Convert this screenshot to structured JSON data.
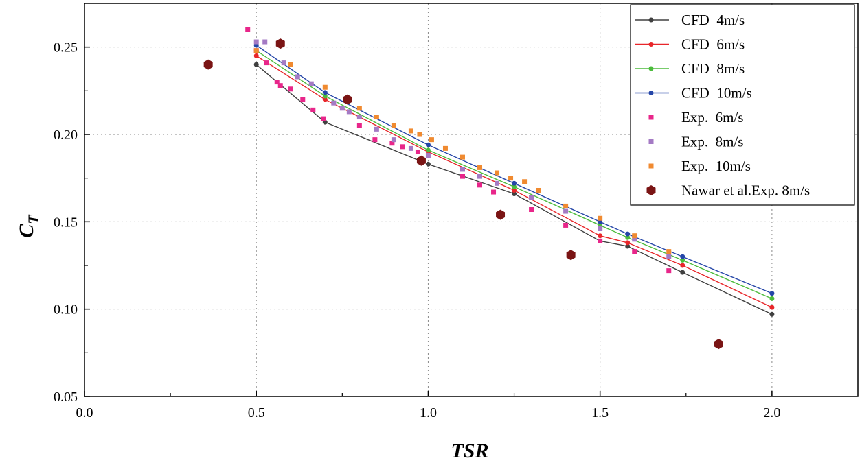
{
  "chart_data": {
    "type": "scatter",
    "title": "",
    "xlabel": "TSR",
    "ylabel_main": "C",
    "ylabel_sub": "T",
    "xlim": [
      0.0,
      2.25
    ],
    "ylim": [
      0.05,
      0.275
    ],
    "xticks": [
      0.0,
      0.5,
      1.0,
      1.5,
      2.0
    ],
    "xtick_labels": [
      "0.0",
      "0.5",
      "1.0",
      "1.5",
      "2.0"
    ],
    "yticks": [
      0.05,
      0.1,
      0.15,
      0.2,
      0.25
    ],
    "ytick_labels": [
      "0.05",
      "0.10",
      "0.15",
      "0.20",
      "0.25"
    ],
    "grid": true,
    "legend_position": "top-right",
    "series": [
      {
        "name": "CFD  4m/s",
        "kind": "line",
        "color": "#404040",
        "x": [
          0.5,
          0.7,
          1.0,
          1.25,
          1.5,
          1.58,
          1.74,
          2.0
        ],
        "y": [
          0.24,
          0.207,
          0.183,
          0.166,
          0.139,
          0.136,
          0.121,
          0.097
        ]
      },
      {
        "name": "CFD  6m/s",
        "kind": "line",
        "color": "#e8262a",
        "x": [
          0.5,
          0.7,
          1.0,
          1.25,
          1.5,
          1.58,
          1.74,
          2.0
        ],
        "y": [
          0.245,
          0.22,
          0.19,
          0.168,
          0.142,
          0.138,
          0.125,
          0.101
        ]
      },
      {
        "name": "CFD  8m/s",
        "kind": "line",
        "color": "#4cbc3c",
        "x": [
          0.5,
          0.7,
          1.0,
          1.25,
          1.5,
          1.58,
          1.74,
          2.0
        ],
        "y": [
          0.248,
          0.222,
          0.191,
          0.17,
          0.148,
          0.141,
          0.128,
          0.106
        ]
      },
      {
        "name": "CFD  10m/s",
        "kind": "line",
        "color": "#2546a8",
        "x": [
          0.5,
          0.7,
          1.0,
          1.25,
          1.5,
          1.58,
          1.74,
          2.0
        ],
        "y": [
          0.251,
          0.224,
          0.194,
          0.172,
          0.15,
          0.143,
          0.13,
          0.109
        ]
      },
      {
        "name": "Exp.  6m/s",
        "kind": "square",
        "color": "#e8268a",
        "x": [
          0.475,
          0.5,
          0.53,
          0.56,
          0.57,
          0.6,
          0.635,
          0.665,
          0.695,
          0.8,
          0.845,
          0.895,
          0.925,
          0.97,
          1.1,
          1.15,
          1.19,
          1.3,
          1.4,
          1.5,
          1.6,
          1.7
        ],
        "y": [
          0.26,
          0.248,
          0.241,
          0.23,
          0.228,
          0.226,
          0.22,
          0.214,
          0.209,
          0.205,
          0.197,
          0.195,
          0.193,
          0.19,
          0.176,
          0.171,
          0.167,
          0.157,
          0.148,
          0.139,
          0.133,
          0.122
        ]
      },
      {
        "name": "Exp.  8m/s",
        "kind": "square",
        "color": "#a47ac4",
        "x": [
          0.5,
          0.525,
          0.58,
          0.62,
          0.66,
          0.725,
          0.75,
          0.77,
          0.8,
          0.85,
          0.9,
          0.95,
          1.0,
          1.1,
          1.15,
          1.2,
          1.3,
          1.4,
          1.5,
          1.6,
          1.7
        ],
        "y": [
          0.253,
          0.253,
          0.241,
          0.233,
          0.229,
          0.218,
          0.215,
          0.213,
          0.21,
          0.203,
          0.197,
          0.192,
          0.188,
          0.18,
          0.176,
          0.172,
          0.164,
          0.156,
          0.146,
          0.14,
          0.13
        ]
      },
      {
        "name": "Exp.  10m/s",
        "kind": "square",
        "color": "#f08a30",
        "x": [
          0.5,
          0.6,
          0.7,
          0.8,
          0.85,
          0.9,
          0.95,
          0.975,
          1.01,
          1.05,
          1.1,
          1.15,
          1.2,
          1.24,
          1.28,
          1.32,
          1.4,
          1.5,
          1.6,
          1.7
        ],
        "y": [
          0.248,
          0.24,
          0.227,
          0.215,
          0.21,
          0.205,
          0.202,
          0.2,
          0.197,
          0.192,
          0.187,
          0.181,
          0.178,
          0.175,
          0.173,
          0.168,
          0.159,
          0.152,
          0.142,
          0.133
        ]
      },
      {
        "name": "Nawar et al.Exp. 8m/s",
        "kind": "hexagon",
        "color": "#7a1414",
        "x": [
          0.36,
          0.57,
          0.765,
          0.98,
          1.21,
          1.415,
          1.845
        ],
        "y": [
          0.24,
          0.252,
          0.22,
          0.185,
          0.154,
          0.131,
          0.08
        ]
      }
    ]
  }
}
